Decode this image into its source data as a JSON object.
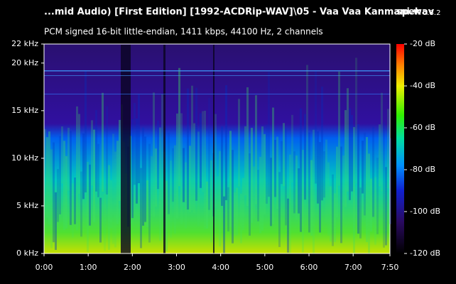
{
  "chart_data": {
    "type": "spectrogram",
    "title": "...mid Audio) [First Edition] [1992-ACDRip-WAV]\\05 - Vaa Vaa Kanmani.wav",
    "app_name": "spek",
    "app_version": "0.8.2",
    "subtitle": "PCM signed 16-bit little-endian, 1411 kbps, 44100 Hz, 2 channels",
    "xlim": [
      0,
      470
    ],
    "xticks": [
      {
        "value": 0,
        "label": "0:00"
      },
      {
        "value": 60,
        "label": "1:00"
      },
      {
        "value": 120,
        "label": "2:00"
      },
      {
        "value": 180,
        "label": "3:00"
      },
      {
        "value": 240,
        "label": "4:00"
      },
      {
        "value": 300,
        "label": "5:00"
      },
      {
        "value": 360,
        "label": "6:00"
      },
      {
        "value": 420,
        "label": "7:00"
      },
      {
        "value": 470,
        "label": "7:50"
      }
    ],
    "ylim": [
      0,
      22
    ],
    "yticks": [
      {
        "value": 0,
        "label": "0 kHz"
      },
      {
        "value": 5,
        "label": "5 kHz"
      },
      {
        "value": 10,
        "label": "10 kHz"
      },
      {
        "value": 15,
        "label": "15 kHz"
      },
      {
        "value": 20,
        "label": "20 kHz"
      },
      {
        "value": 22,
        "label": "22 kHz"
      }
    ],
    "zlim": [
      -120,
      -20
    ],
    "zticks": [
      {
        "value": -20,
        "label": "-20 dB"
      },
      {
        "value": -40,
        "label": "-40 dB"
      },
      {
        "value": -60,
        "label": "-60 dB"
      },
      {
        "value": -80,
        "label": "-80 dB"
      },
      {
        "value": -100,
        "label": "-100 dB"
      },
      {
        "value": -120,
        "label": "-120 dB"
      }
    ]
  }
}
